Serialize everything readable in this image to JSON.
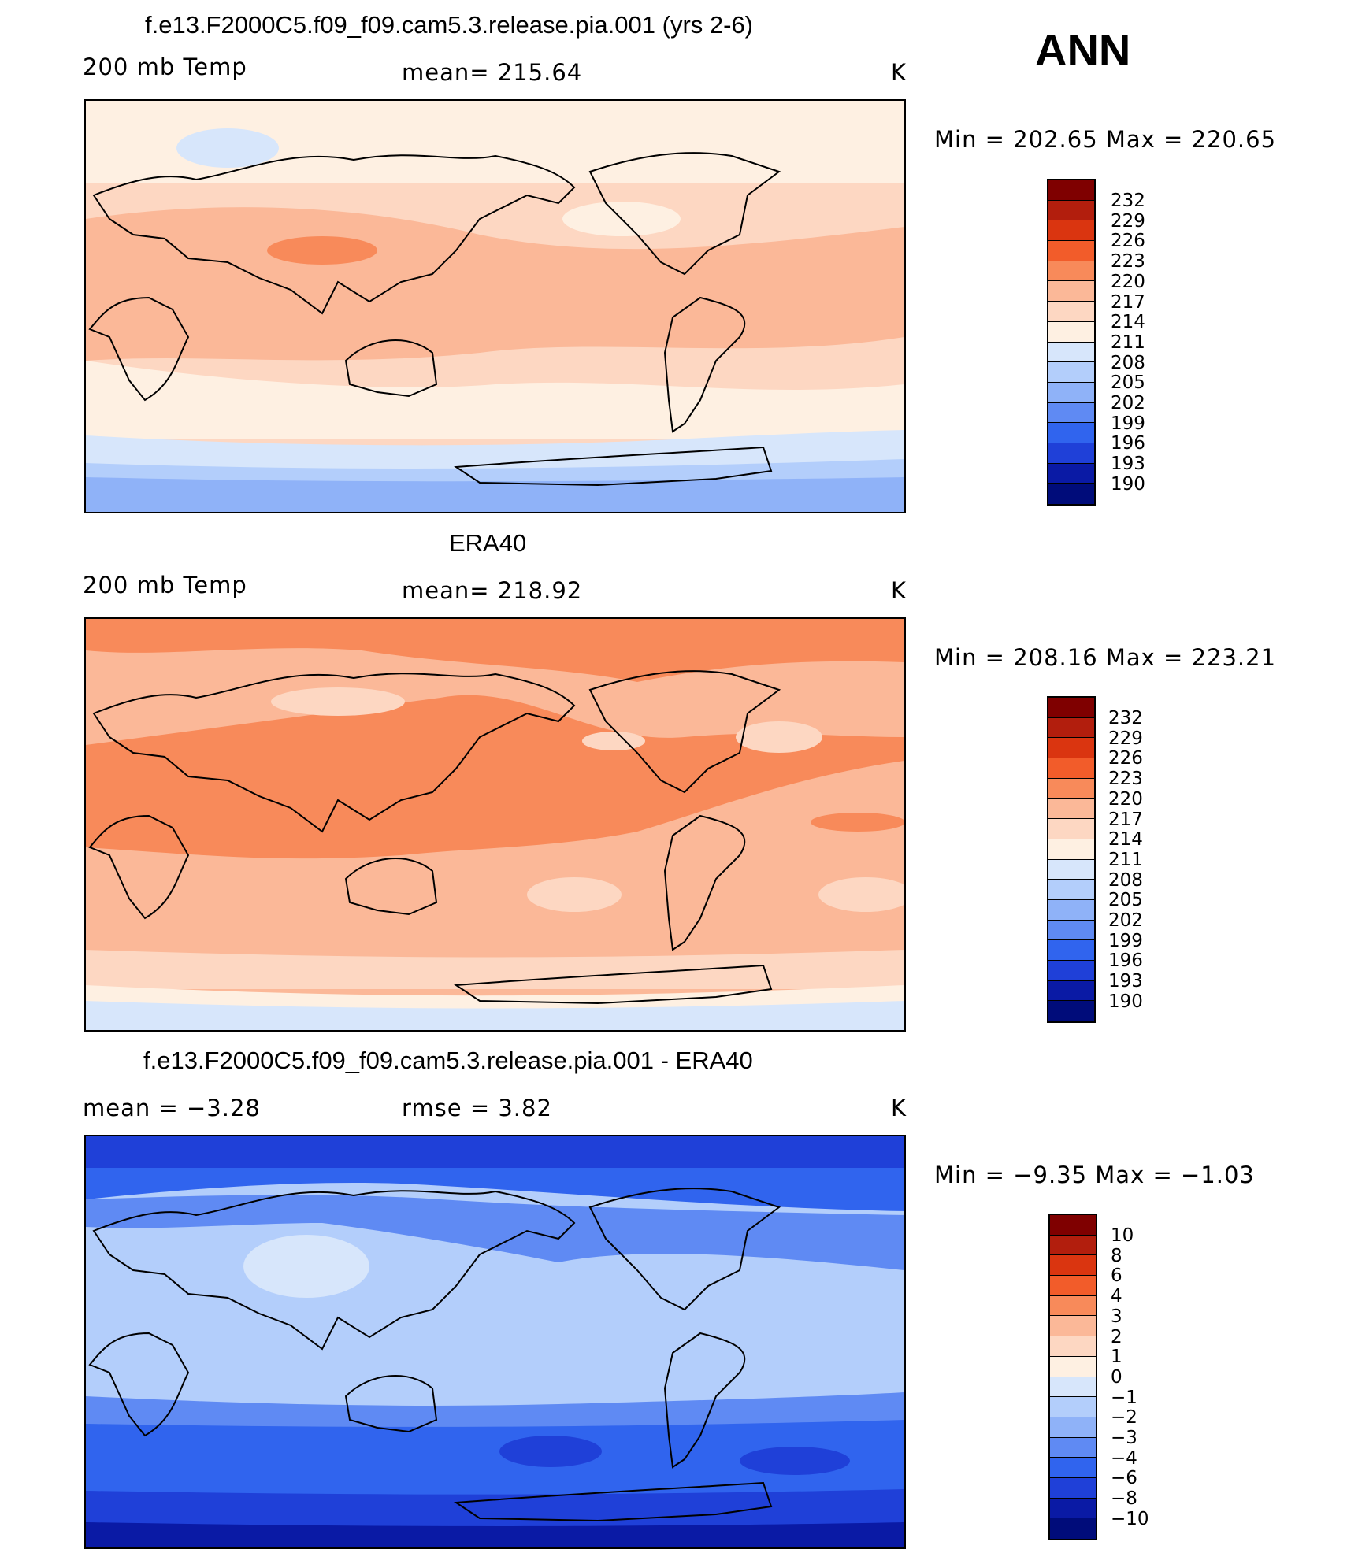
{
  "season": "ANN",
  "panels": [
    {
      "title": "f.e13.F2000C5.f09_f09.cam5.3.release.pia.001 (yrs 2-6)",
      "left_label": "200 mb Temp",
      "center_label": "mean= 215.64",
      "units": "K",
      "minmax": "Min = 202.65 Max = 220.65",
      "colorbar_labels": [
        "232",
        "229",
        "226",
        "223",
        "220",
        "217",
        "214",
        "211",
        "208",
        "205",
        "202",
        "199",
        "196",
        "193",
        "190"
      ]
    },
    {
      "title": "ERA40",
      "left_label": "200 mb Temp",
      "center_label": "mean= 218.92",
      "units": "K",
      "minmax": "Min = 208.16 Max = 223.21",
      "colorbar_labels": [
        "232",
        "229",
        "226",
        "223",
        "220",
        "217",
        "214",
        "211",
        "208",
        "205",
        "202",
        "199",
        "196",
        "193",
        "190"
      ]
    },
    {
      "title": "f.e13.F2000C5.f09_f09.cam5.3.release.pia.001 - ERA40",
      "left_label": "mean =   −3.28",
      "center_label": "rmse =    3.82",
      "units": "K",
      "minmax": "Min =   −9.35 Max =   −1.03",
      "colorbar_labels": [
        "10",
        "8",
        "6",
        "4",
        "3",
        "2",
        "1",
        "0",
        "−1",
        "−2",
        "−3",
        "−4",
        "−6",
        "−8",
        "−10"
      ]
    }
  ],
  "colors": {
    "abs_scale": [
      "#7f0000",
      "#b21e0d",
      "#da3510",
      "#f25c2a",
      "#f88a5a",
      "#fbb898",
      "#fdd7c2",
      "#fef0e2",
      "#d7e6fb",
      "#b3cefb",
      "#8fb2f8",
      "#5f8af3",
      "#3064ee",
      "#1f40d8",
      "#0a1aa5",
      "#000c7a"
    ],
    "diff_scale": [
      "#7f0000",
      "#b21e0d",
      "#da3510",
      "#f25c2a",
      "#f88a5a",
      "#fbb898",
      "#fdd7c2",
      "#fef0e2",
      "#d7e6fb",
      "#b3cefb",
      "#8fb2f8",
      "#5f8af3",
      "#3064ee",
      "#1f40d8",
      "#0a1aa5",
      "#000c7a"
    ]
  }
}
